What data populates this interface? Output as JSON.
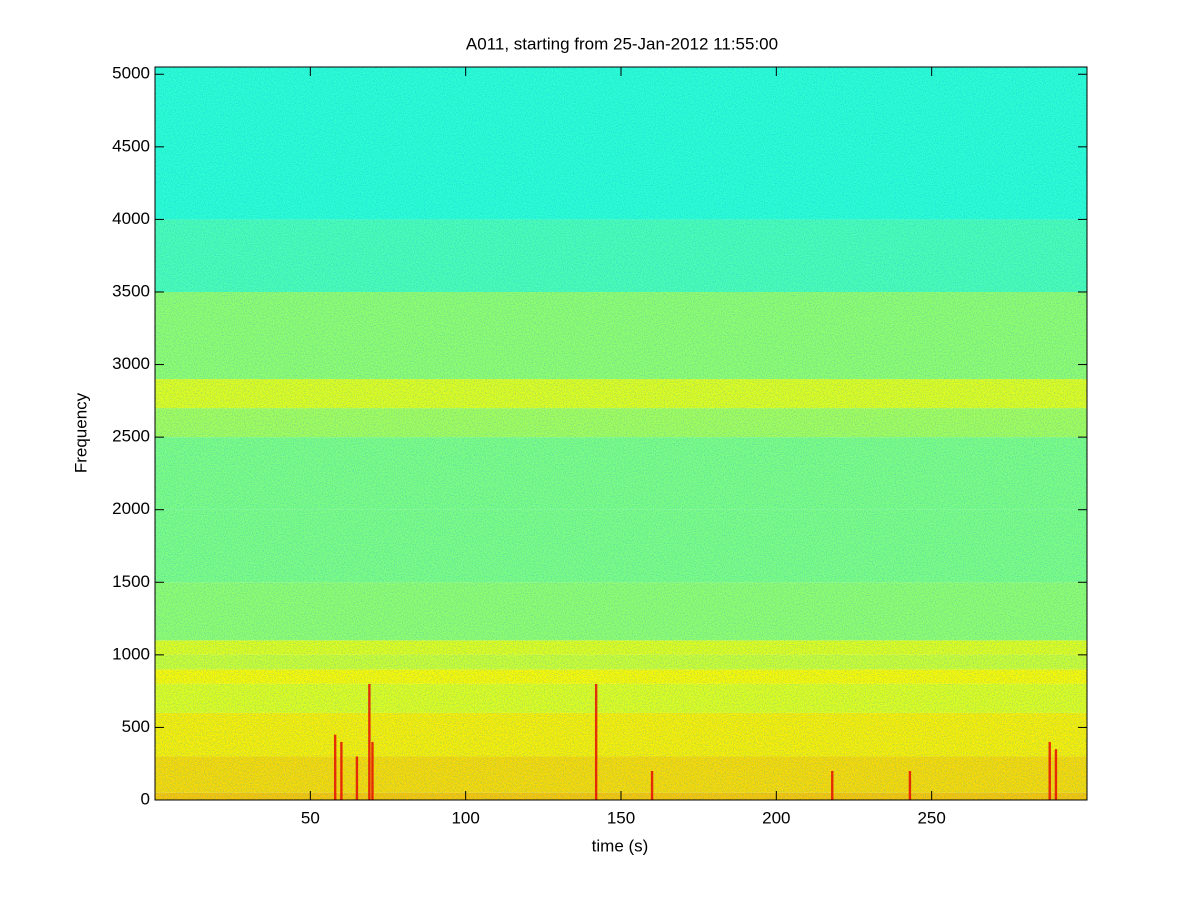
{
  "chart_data": {
    "type": "spectrogram",
    "title": "A011, starting from 25-Jan-2012 11:55:00",
    "xlabel": "time (s)",
    "ylabel": "Frequency",
    "xlim": [
      0,
      300
    ],
    "ylim": [
      0,
      5050
    ],
    "xticks": [
      50,
      100,
      150,
      200,
      250
    ],
    "yticks": [
      0,
      500,
      1000,
      1500,
      2000,
      2500,
      3000,
      3500,
      4000,
      4500,
      5000
    ],
    "y_bins": [
      0,
      50,
      300,
      600,
      800,
      900,
      1000,
      1100,
      1500,
      2000,
      2500,
      2700,
      2900,
      3500,
      4000,
      5050
    ],
    "levels": [
      0.68,
      0.66,
      0.64,
      0.6,
      0.63,
      0.58,
      0.6,
      0.52,
      0.5,
      0.5,
      0.54,
      0.6,
      0.52,
      0.45,
      0.42
    ],
    "events": {
      "times": [
        58,
        60,
        65,
        69,
        70,
        142,
        160,
        218,
        243,
        288,
        290
      ],
      "top_freqs": [
        450,
        400,
        300,
        800,
        400,
        800,
        200,
        200,
        200,
        400,
        350
      ],
      "level": 0.9
    }
  }
}
